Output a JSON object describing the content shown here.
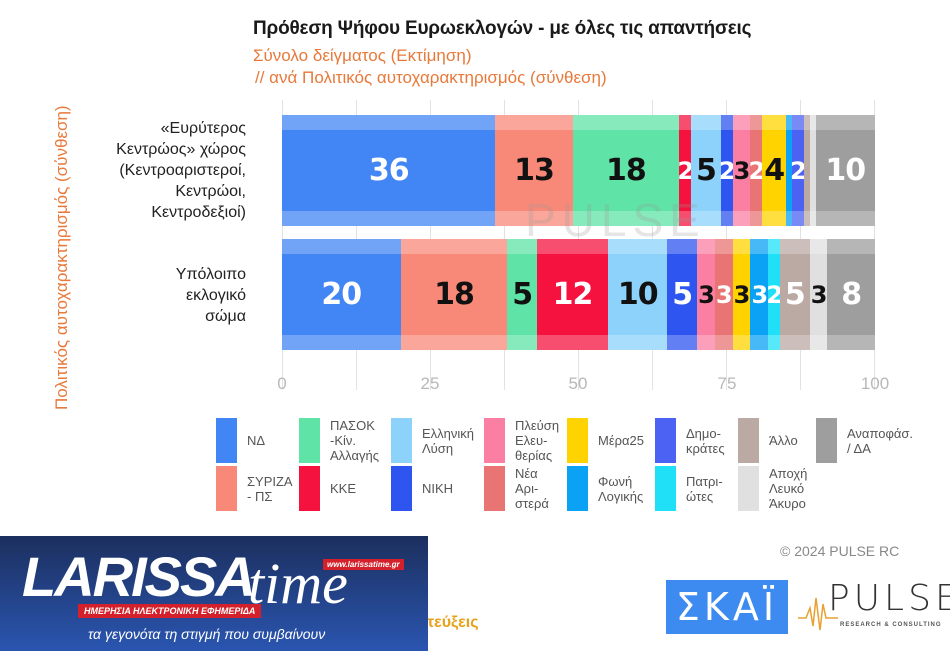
{
  "chart_data": {
    "type": "bar",
    "orientation": "horizontal",
    "stacked": true,
    "title": "Πρόθεση Ψήφου Ευρωεκλογών - με όλες τις απαντήσεις",
    "subtitle": [
      "Σύνολο δείγματος   (Εκτίμηση)",
      " // ανά Πολιτικός αυτοχαρακτηρισμός (σύνθεση)"
    ],
    "ylabel": "Πολιτικός αυτοχαρακτηρισμός (σύνθεση)",
    "xlabel": "",
    "xlim": [
      0,
      100
    ],
    "xticks": [
      0,
      25,
      50,
      75,
      100
    ],
    "grid": true,
    "legend_position": "bottom",
    "categories": [
      "«Ευρύτερος\nΚεντρώος» χώρος\n(Κεντροαριστεροί,\nΚεντρώοι,\nΚεντροδεξιοί)",
      "Υπόλοιπο\nεκλογικό\nσώμα"
    ],
    "series": [
      {
        "name": "ΝΔ",
        "color": "#4285f4",
        "label_color": "#ffffff",
        "values": [
          36,
          20
        ]
      },
      {
        "name": "ΣΥΡΙΖΑ - ΠΣ",
        "color": "#f88878",
        "label_color": "#111111",
        "values": [
          13,
          18
        ]
      },
      {
        "name": "ΠΑΣΟΚ -Κίν. Αλλαγής",
        "color": "#5fe3a6",
        "label_color": "#111111",
        "values": [
          18,
          5
        ]
      },
      {
        "name": "ΚΚΕ",
        "color": "#f5123f",
        "label_color": "#ffffff",
        "values": [
          2,
          12
        ]
      },
      {
        "name": "Ελληνική Λύση",
        "color": "#8dd2fb",
        "label_color": "#111111",
        "values": [
          5,
          10
        ]
      },
      {
        "name": "ΝΙΚΗ",
        "color": "#2f55f0",
        "label_color": "#ffffff",
        "values": [
          2,
          5
        ]
      },
      {
        "name": "Πλεύση Ελευθερίας",
        "color": "#fb7fa3",
        "label_color": "#111111",
        "values": [
          3,
          3
        ]
      },
      {
        "name": "Νέα Αριστερά",
        "color": "#e87474",
        "label_color": "#ffffff",
        "values": [
          2,
          3
        ]
      },
      {
        "name": "Μέρα25",
        "color": "#ffd300",
        "label_color": "#111111",
        "values": [
          4,
          3
        ]
      },
      {
        "name": "Φωνή Λογικής",
        "color": "#0ba2f5",
        "label_color": "#ffffff",
        "values": [
          1,
          3
        ]
      },
      {
        "name": "Δημοκράτες",
        "color": "#4c62f2",
        "label_color": "#ffffff",
        "values": [
          2,
          0
        ]
      },
      {
        "name": "Πατριώτες",
        "color": "#1fe0f7",
        "label_color": "#ffffff",
        "values": [
          0,
          2
        ]
      },
      {
        "name": "Άλλο",
        "color": "#bba9a4",
        "label_color": "#ffffff",
        "values": [
          1,
          5
        ]
      },
      {
        "name": "Αποχή Λευκό Άκυρο",
        "color": "#e0e0e0",
        "label_color": "#111111",
        "values": [
          1,
          3
        ]
      },
      {
        "name": "Αναποφάσ. / ΔΑ",
        "color": "#9e9e9e",
        "label_color": "#ffffff",
        "values": [
          10,
          8
        ]
      }
    ],
    "data_labels": [
      [
        "36",
        "13",
        "18",
        "2",
        "5",
        "2",
        "3",
        "2",
        "4",
        "",
        "2",
        "",
        "",
        "",
        "10"
      ],
      [
        "20",
        "18",
        "5",
        "12",
        "10",
        "5",
        "3",
        "3",
        "3",
        "3",
        "",
        "2",
        "5",
        "3",
        "8"
      ]
    ]
  },
  "header": {
    "title": "Πρόθεση Ψήφου Ευρωεκλογών - με όλες τις απαντήσεις",
    "subtitle1": "Σύνολο δείγματος   (Εκτίμηση)",
    "subtitle2": "// ανά Πολιτικός αυτοχαρακτηρισμός (σύνθεση)"
  },
  "axis": {
    "y_title": "Πολιτικός αυτοχαρακτηρισμός (σύνθεση)",
    "ticks": [
      "0",
      "25",
      "50",
      "75",
      "100"
    ]
  },
  "legend": [
    {
      "label": "ΝΔ",
      "color": "#4285f4"
    },
    {
      "label": "ΣΥΡΙΖΑ\n- ΠΣ",
      "color": "#f88878"
    },
    {
      "label": "ΠΑΣΟΚ\n-Κίν.\nΑλλαγής",
      "color": "#5fe3a6"
    },
    {
      "label": "ΚΚΕ",
      "color": "#f5123f"
    },
    {
      "label": "Ελληνική\nΛύση",
      "color": "#8dd2fb"
    },
    {
      "label": "ΝΙΚΗ",
      "color": "#2f55f0"
    },
    {
      "label": "Πλεύση\nΕλευ-\nθερίας",
      "color": "#fb7fa3"
    },
    {
      "label": "Νέα\nΑρι-\nστερά",
      "color": "#e87474"
    },
    {
      "label": "Μέρα25",
      "color": "#ffd300"
    },
    {
      "label": "Φωνή\nΛογικής",
      "color": "#0ba2f5"
    },
    {
      "label": "Δημο-\nκράτες",
      "color": "#4c62f2"
    },
    {
      "label": "Πατρι-\nώτες",
      "color": "#1fe0f7"
    },
    {
      "label": "Άλλο",
      "color": "#bba9a4"
    },
    {
      "label": "Αποχή\nΛευκό\nΆκυρο",
      "color": "#e0e0e0"
    },
    {
      "label": "Αναποφάσ.\n/ ΔΑ",
      "color": "#9e9e9e"
    }
  ],
  "watermark": "PULSE",
  "footer": {
    "copyright": "© 2024 PULSE RC",
    "skai_logo": "ΣΚΑΪ",
    "pulse_logo": "PULSE",
    "pulse_sub": "RESEARCH & CONSULTING",
    "partial_text": "τεύξεις"
  },
  "banner": {
    "brand": "LARISSA",
    "brand2": "time",
    "url": "www.larissatime.gr",
    "tagline1": "ΗΜΕΡΗΣΙΑ ΗΛΕΚΤΡΟΝΙΚΗ ΕΦΗΜΕΡΙΔΑ",
    "tagline2": "τα γεγονότα τη στιγμή που συμβαίνουν"
  }
}
